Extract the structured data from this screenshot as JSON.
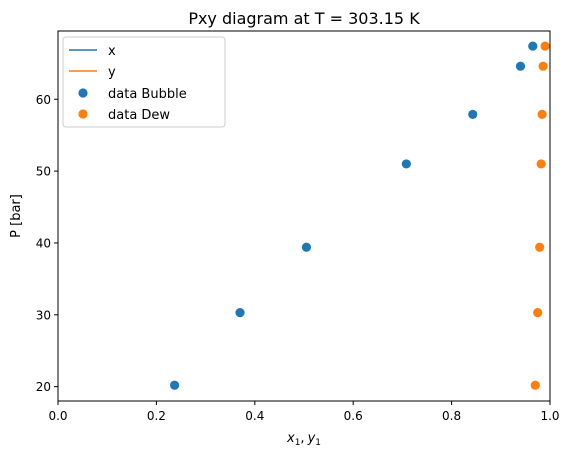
{
  "chart_data": {
    "type": "scatter",
    "title": "Pxy diagram at T = 303.15 K",
    "xlabel_var1": "x",
    "xlabel_var2": "y",
    "xlabel_sub": "1",
    "ylabel": "P [bar]",
    "xlim": [
      0,
      1.0
    ],
    "ylim": [
      18.0,
      69.5
    ],
    "xticks": [
      "0.0",
      "0.2",
      "0.4",
      "0.6",
      "0.8",
      "1.0"
    ],
    "yticks": [
      "20",
      "30",
      "40",
      "50",
      "60"
    ],
    "grid": false,
    "legend_position": "top-left",
    "legend": [
      "x",
      "y",
      "data Bubble",
      "data Dew"
    ],
    "series": [
      {
        "name": "x",
        "kind": "line",
        "color": "#1f77b4",
        "points": []
      },
      {
        "name": "y",
        "kind": "line",
        "color": "#ff7f0e",
        "points": []
      },
      {
        "name": "data Bubble",
        "kind": "scatter",
        "color": "#1f77b4",
        "points": [
          [
            0.237,
            20.2
          ],
          [
            0.37,
            30.3
          ],
          [
            0.505,
            39.4
          ],
          [
            0.708,
            51.0
          ],
          [
            0.843,
            57.9
          ],
          [
            0.94,
            64.6
          ],
          [
            0.965,
            67.4
          ]
        ]
      },
      {
        "name": "data Dew",
        "kind": "scatter",
        "color": "#ff7f0e",
        "points": [
          [
            0.97,
            20.2
          ],
          [
            0.975,
            30.3
          ],
          [
            0.979,
            39.4
          ],
          [
            0.982,
            51.0
          ],
          [
            0.984,
            57.9
          ],
          [
            0.986,
            64.6
          ],
          [
            0.99,
            67.4
          ]
        ]
      }
    ]
  }
}
